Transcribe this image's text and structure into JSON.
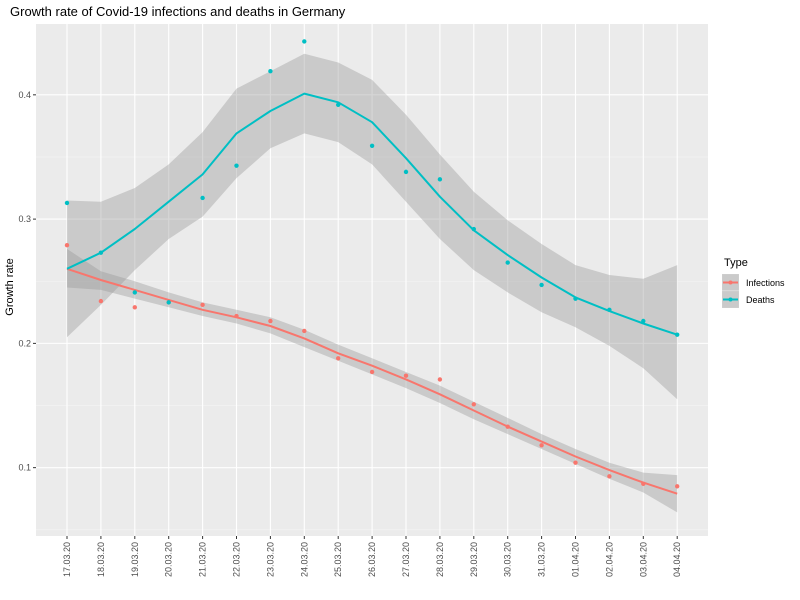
{
  "chart_data": {
    "type": "line",
    "title": "Growth rate of Covid-19 infections and deaths in Germany",
    "xlabel": "",
    "ylabel": "Growth rate",
    "categories": [
      "17.03.20",
      "18.03.20",
      "19.03.20",
      "20.03.20",
      "21.03.20",
      "22.03.20",
      "23.03.20",
      "24.03.20",
      "25.03.20",
      "26.03.20",
      "27.03.20",
      "28.03.20",
      "29.03.20",
      "30.03.20",
      "31.03.20",
      "01.04.20",
      "02.04.20",
      "03.04.20",
      "04.04.20"
    ],
    "ylim": [
      0.045,
      0.457
    ],
    "yticks": [
      0.1,
      0.2,
      0.3,
      0.4
    ],
    "ytick_labels": [
      "0.1",
      "0.2",
      "0.3",
      "0.4"
    ],
    "grid": true,
    "legend_position": "right",
    "legend_title": "Type",
    "series": [
      {
        "name": "Infections",
        "color": "#F8766D",
        "points": [
          0.279,
          0.234,
          0.229,
          0.233,
          0.231,
          0.222,
          0.218,
          0.21,
          0.188,
          0.177,
          0.174,
          0.171,
          0.151,
          0.133,
          0.118,
          0.104,
          0.093,
          0.087,
          0.085
        ],
        "smooth": [
          0.26,
          0.251,
          0.243,
          0.235,
          0.227,
          0.221,
          0.214,
          0.204,
          0.192,
          0.182,
          0.171,
          0.159,
          0.146,
          0.133,
          0.121,
          0.109,
          0.098,
          0.088,
          0.079
        ],
        "band_lower": [
          0.245,
          0.243,
          0.236,
          0.229,
          0.222,
          0.216,
          0.208,
          0.197,
          0.186,
          0.175,
          0.164,
          0.152,
          0.139,
          0.127,
          0.115,
          0.103,
          0.091,
          0.08,
          0.064
        ],
        "band_upper": [
          0.276,
          0.258,
          0.25,
          0.241,
          0.233,
          0.227,
          0.221,
          0.211,
          0.199,
          0.188,
          0.177,
          0.166,
          0.153,
          0.14,
          0.127,
          0.115,
          0.104,
          0.096,
          0.094
        ]
      },
      {
        "name": "Deaths",
        "color": "#00BFC4",
        "points": [
          0.313,
          0.273,
          0.241,
          0.233,
          0.317,
          0.343,
          0.419,
          0.443,
          0.392,
          0.359,
          0.338,
          0.332,
          0.292,
          0.265,
          0.247,
          0.236,
          0.227,
          0.218,
          0.207
        ],
        "smooth": [
          0.26,
          0.273,
          0.292,
          0.314,
          0.336,
          0.369,
          0.387,
          0.401,
          0.394,
          0.378,
          0.349,
          0.318,
          0.291,
          0.271,
          0.253,
          0.237,
          0.226,
          0.216,
          0.207
        ],
        "band_lower": [
          0.205,
          0.231,
          0.259,
          0.284,
          0.302,
          0.333,
          0.357,
          0.369,
          0.362,
          0.344,
          0.314,
          0.284,
          0.259,
          0.241,
          0.225,
          0.213,
          0.198,
          0.18,
          0.155
        ],
        "band_upper": [
          0.315,
          0.314,
          0.325,
          0.344,
          0.37,
          0.405,
          0.419,
          0.433,
          0.426,
          0.412,
          0.384,
          0.352,
          0.322,
          0.299,
          0.28,
          0.263,
          0.255,
          0.252,
          0.263
        ]
      }
    ]
  }
}
